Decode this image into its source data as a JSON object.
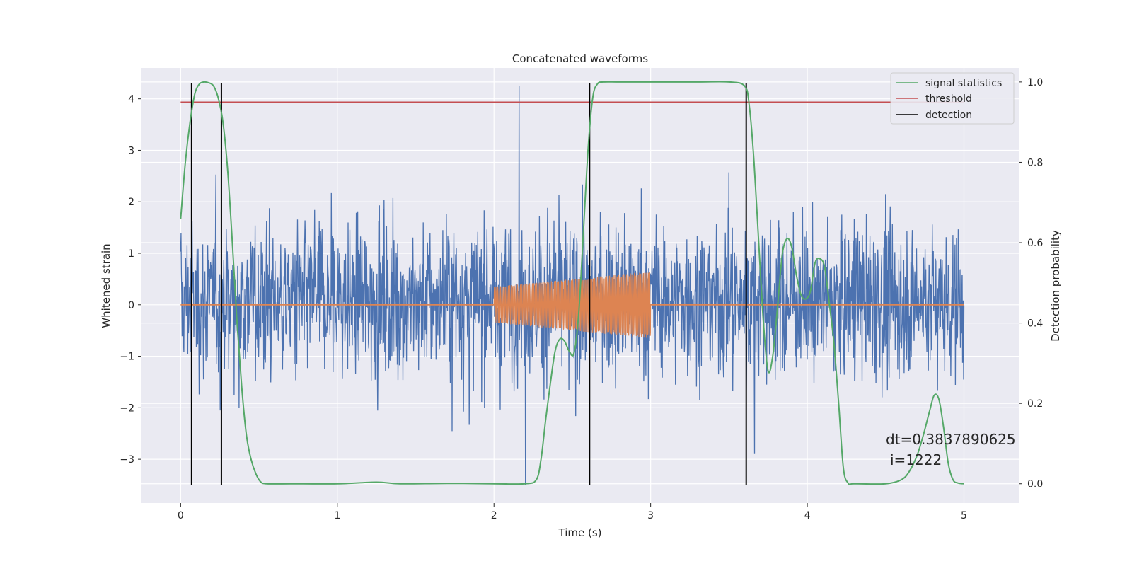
{
  "chart_data": {
    "type": "line",
    "title": "Concatenated waveforms",
    "xlabel": "Time (s)",
    "ylabel": "Whitened strain",
    "y2label": "Detection probability",
    "xlim": [
      -0.25,
      5.35
    ],
    "ylim": [
      -3.85,
      4.6
    ],
    "y2lim": [
      -0.048,
      1.035
    ],
    "x_ticks": [
      0,
      1,
      2,
      3,
      4,
      5
    ],
    "x_tick_labels": [
      "0",
      "1",
      "2",
      "3",
      "4",
      "5"
    ],
    "y_ticks": [
      -3,
      -2,
      -1,
      0,
      1,
      2,
      3,
      4
    ],
    "y_tick_labels": [
      "−3",
      "−2",
      "−1",
      "0",
      "1",
      "2",
      "3",
      "4"
    ],
    "y2_ticks": [
      0.0,
      0.2,
      0.4,
      0.6,
      0.8,
      1.0
    ],
    "y2_tick_labels": [
      "0.0",
      "0.2",
      "0.4",
      "0.6",
      "0.8",
      "1.0"
    ],
    "grid": true,
    "legend_position": "top-right",
    "colors": {
      "background": "#eaeaf2",
      "grid": "#ffffff",
      "strain": "#4c72b0",
      "injected_signal": "#dd8452",
      "signal_statistics": "#55a868",
      "threshold": "#c44e52",
      "detection": "#000000"
    },
    "series": [
      {
        "name": "signal statistics",
        "axis": "right",
        "x": [
          0.0,
          0.03,
          0.06,
          0.09,
          0.12,
          0.15,
          0.18,
          0.21,
          0.24,
          0.27,
          0.3,
          0.33,
          0.36,
          0.39,
          0.42,
          0.45,
          0.48,
          0.51,
          0.55,
          0.7,
          1.0,
          1.25,
          1.4,
          1.7,
          2.0,
          2.2,
          2.27,
          2.3,
          2.33,
          2.36,
          2.39,
          2.42,
          2.45,
          2.48,
          2.51,
          2.54,
          2.57,
          2.6,
          2.63,
          2.66,
          2.7,
          2.8,
          3.0,
          3.3,
          3.5,
          3.6,
          3.63,
          3.66,
          3.69,
          3.72,
          3.75,
          3.78,
          3.81,
          3.84,
          3.87,
          3.9,
          3.93,
          3.96,
          3.99,
          4.02,
          4.05,
          4.08,
          4.11,
          4.14,
          4.17,
          4.2,
          4.23,
          4.26,
          4.3,
          4.5,
          4.6,
          4.65,
          4.7,
          4.74,
          4.78,
          4.81,
          4.84,
          4.87,
          4.9,
          4.93,
          4.96,
          5.0
        ],
        "values": [
          0.66,
          0.8,
          0.9,
          0.97,
          0.995,
          1.0,
          0.998,
          0.99,
          0.96,
          0.9,
          0.78,
          0.6,
          0.4,
          0.24,
          0.12,
          0.06,
          0.025,
          0.005,
          0.0,
          0.0,
          0.0,
          0.004,
          0.0,
          0.001,
          0.0,
          0.0,
          0.01,
          0.06,
          0.16,
          0.25,
          0.33,
          0.36,
          0.355,
          0.33,
          0.325,
          0.42,
          0.62,
          0.83,
          0.96,
          0.995,
          1.0,
          1.0,
          1.0,
          1.0,
          1.0,
          0.99,
          0.94,
          0.8,
          0.6,
          0.4,
          0.28,
          0.32,
          0.44,
          0.57,
          0.61,
          0.59,
          0.52,
          0.47,
          0.46,
          0.48,
          0.55,
          0.56,
          0.54,
          0.45,
          0.35,
          0.2,
          0.04,
          0.002,
          0.0,
          0.0,
          0.01,
          0.03,
          0.07,
          0.12,
          0.18,
          0.22,
          0.21,
          0.14,
          0.05,
          0.01,
          0.002,
          0.0
        ]
      },
      {
        "name": "threshold",
        "axis": "right",
        "x": [
          0.0,
          5.0
        ],
        "values": [
          0.95,
          0.95
        ]
      },
      {
        "name": "detection",
        "axis": "left",
        "x": [
          0.07,
          0.26,
          2.61,
          3.61
        ],
        "y_range": [
          -3.5,
          4.3
        ]
      },
      {
        "name": "",
        "role": "whitened strain",
        "axis": "left",
        "x_range": [
          0.0,
          5.0
        ],
        "samples": 2200,
        "typical_envelope": [
          -2.0,
          2.4
        ],
        "y_max": 4.25,
        "y_min": -3.5
      },
      {
        "name": "",
        "role": "injected waveform",
        "axis": "left",
        "baseline": 0,
        "chirp_x_range": [
          2.0,
          3.0
        ],
        "amplitude_start": 0.35,
        "amplitude_end": 0.65,
        "cycles": 100
      }
    ],
    "annotation": {
      "line1": "dt=0.3837890625",
      "line2": "i=1222",
      "x": 4.52,
      "y": -2.65
    }
  }
}
